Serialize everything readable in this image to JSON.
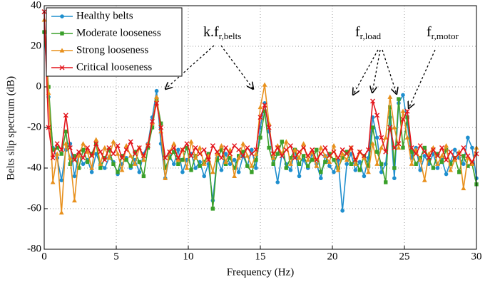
{
  "chart_data": {
    "type": "line",
    "xlabel": "Frequency (Hz)",
    "ylabel": "Belts slip spectrum (dB)",
    "xlim": [
      0,
      30
    ],
    "xticks": [
      0,
      5,
      10,
      15,
      20,
      25,
      30
    ],
    "ylim": [
      -80,
      40
    ],
    "yticks": [
      -80,
      -60,
      -40,
      -20,
      0,
      20,
      40
    ],
    "grid": true,
    "legend": "upper left",
    "annotations": [
      {
        "text": "k.f",
        "sub": "r,belts"
      },
      {
        "text": "f",
        "sub": "r,load"
      },
      {
        "text": "f",
        "sub": "r,motor"
      }
    ],
    "x": [
      0,
      0.3,
      0.6,
      0.9,
      1.2,
      1.5,
      1.8,
      2.1,
      2.4,
      2.7,
      3,
      3.3,
      3.6,
      3.9,
      4.2,
      4.5,
      4.8,
      5.1,
      5.4,
      5.7,
      6,
      6.3,
      6.6,
      6.9,
      7.2,
      7.5,
      7.8,
      8.1,
      8.4,
      8.7,
      9,
      9.3,
      9.6,
      9.9,
      10.2,
      10.5,
      10.8,
      11.1,
      11.4,
      11.7,
      12,
      12.3,
      12.6,
      12.9,
      13.2,
      13.5,
      13.8,
      14.1,
      14.4,
      14.7,
      15,
      15.3,
      15.6,
      15.9,
      16.2,
      16.5,
      16.8,
      17.1,
      17.4,
      17.7,
      18,
      18.3,
      18.6,
      18.9,
      19.2,
      19.5,
      19.8,
      20.1,
      20.4,
      20.7,
      21,
      21.3,
      21.6,
      21.9,
      22.2,
      22.5,
      22.8,
      23.1,
      23.4,
      23.7,
      24,
      24.3,
      24.6,
      24.9,
      25.2,
      25.5,
      25.8,
      26.1,
      26.4,
      26.7,
      27,
      27.3,
      27.6,
      27.9,
      28.2,
      28.5,
      28.8,
      29.1,
      29.4,
      29.7,
      30
    ],
    "series": [
      {
        "name": "Healthy belts",
        "color": "#1f8fce",
        "marker": "circle",
        "values": [
          27,
          -5,
          -30,
          -35,
          -46,
          -31,
          -28,
          -44,
          -33,
          -38,
          -36,
          -42,
          -33,
          -38,
          -40,
          -35,
          -37,
          -43,
          -38,
          -35,
          -40,
          -36,
          -42,
          -33,
          -28,
          -15,
          -2,
          -28,
          -45,
          -34,
          -38,
          -31,
          -42,
          -36,
          -33,
          -40,
          -37,
          -44,
          -38,
          -56,
          -35,
          -41,
          -33,
          -38,
          -36,
          -42,
          -34,
          -39,
          -31,
          -40,
          -20,
          -8,
          -22,
          -35,
          -47,
          -33,
          -38,
          -41,
          -31,
          -44,
          -36,
          -40,
          -33,
          -38,
          -45,
          -34,
          -39,
          -42,
          -36,
          -61,
          -38,
          -33,
          -41,
          -37,
          -44,
          -35,
          -15,
          -25,
          -42,
          -38,
          -15,
          -45,
          -8,
          -4,
          -18,
          -35,
          -30,
          -41,
          -34,
          -38,
          -33,
          -40,
          -36,
          -43,
          -37,
          -31,
          -35,
          -38,
          -25,
          -30,
          -45
        ]
      },
      {
        "name": "Moderate looseness",
        "color": "#3aa02a",
        "marker": "square",
        "values": [
          27,
          0,
          -31,
          -30,
          -33,
          -22,
          -38,
          -34,
          -40,
          -31,
          -37,
          -33,
          -28,
          -40,
          -35,
          -31,
          -38,
          -42,
          -34,
          -36,
          -39,
          -32,
          -37,
          -44,
          -30,
          -20,
          -6,
          -18,
          -40,
          -35,
          -32,
          -38,
          -36,
          -30,
          -41,
          -34,
          -39,
          -37,
          -33,
          -60,
          -36,
          -31,
          -38,
          -35,
          -40,
          -34,
          -32,
          -39,
          -42,
          -36,
          -25,
          -12,
          -30,
          -38,
          -33,
          -27,
          -40,
          -35,
          -31,
          -38,
          -34,
          -39,
          -36,
          -31,
          -42,
          -37,
          -33,
          -36,
          -40,
          -35,
          -32,
          -38,
          -36,
          -41,
          -34,
          -39,
          -20,
          -32,
          -38,
          -47,
          -10,
          -40,
          -6,
          -30,
          -15,
          -32,
          -38,
          -35,
          -30,
          -36,
          -40,
          -33,
          -37,
          -31,
          -38,
          -35,
          -42,
          -34,
          -39,
          -38,
          -48
        ]
      },
      {
        "name": "Strong looseness",
        "color": "#e8901c",
        "marker": "triangle",
        "values": [
          33,
          -3,
          -47,
          -33,
          -62,
          -28,
          -35,
          -56,
          -34,
          -28,
          -32,
          -40,
          -26,
          -38,
          -30,
          -35,
          -27,
          -33,
          -41,
          -29,
          -34,
          -38,
          -30,
          -36,
          -28,
          -18,
          -5,
          -22,
          -45,
          -32,
          -28,
          -36,
          -31,
          -40,
          -27,
          -35,
          -30,
          -38,
          -34,
          -42,
          -33,
          -29,
          -37,
          -31,
          -44,
          -35,
          -28,
          -34,
          -39,
          -33,
          -10,
          1,
          -18,
          -35,
          -29,
          -33,
          -27,
          -38,
          -31,
          -35,
          -28,
          -36,
          -32,
          -39,
          -30,
          -34,
          -37,
          -29,
          -41,
          -33,
          -36,
          -30,
          -38,
          -32,
          -35,
          -42,
          -28,
          -38,
          -30,
          -25,
          -5,
          -20,
          -30,
          -12,
          -25,
          -38,
          -31,
          -36,
          -46,
          -33,
          -30,
          -38,
          -34,
          -29,
          -41,
          -36,
          -32,
          -50,
          -35,
          -38,
          -30
        ]
      },
      {
        "name": "Critical looseness",
        "color": "#e3141b",
        "marker": "x",
        "values": [
          37,
          -20,
          -35,
          -28,
          -31,
          -14,
          -30,
          -36,
          -32,
          -35,
          -30,
          -34,
          -28,
          -32,
          -36,
          -30,
          -33,
          -29,
          -35,
          -31,
          -27,
          -33,
          -30,
          -34,
          -29,
          -17,
          -8,
          -20,
          -35,
          -32,
          -30,
          -35,
          -31,
          -28,
          -34,
          -30,
          -33,
          -31,
          -36,
          -29,
          -32,
          -35,
          -30,
          -33,
          -29,
          -31,
          -34,
          -30,
          -33,
          -31,
          -15,
          -9,
          -20,
          -33,
          -30,
          -34,
          -31,
          -29,
          -35,
          -32,
          -30,
          -34,
          -31,
          -36,
          -33,
          -30,
          -34,
          -32,
          -35,
          -31,
          -33,
          -30,
          -36,
          -32,
          -34,
          -31,
          -7,
          -14,
          -25,
          -32,
          -20,
          -30,
          -28,
          -16,
          -12,
          -30,
          -33,
          -29,
          -32,
          -35,
          -31,
          -34,
          -30,
          -36,
          -32,
          -35,
          -33,
          -30,
          -34,
          -37,
          -33
        ]
      }
    ]
  }
}
